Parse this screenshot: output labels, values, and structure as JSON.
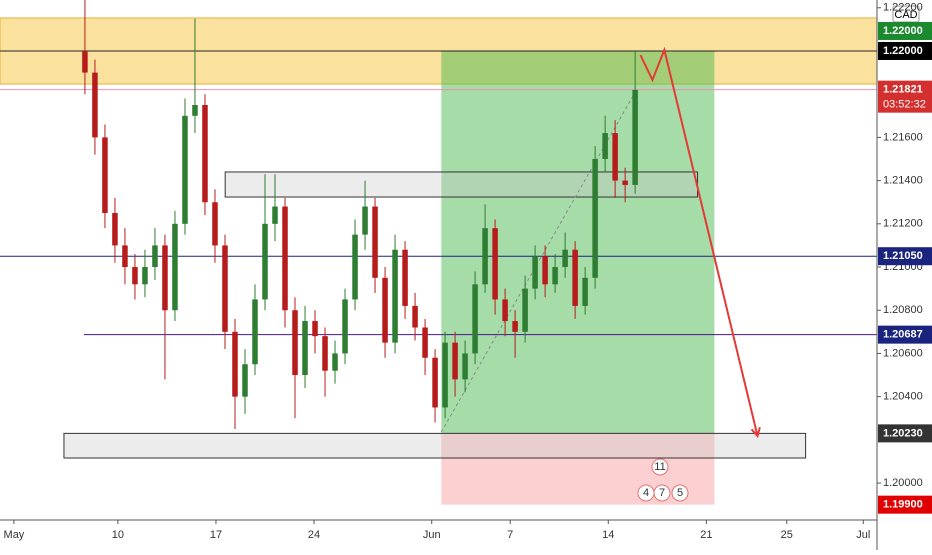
{
  "chart_data": {
    "type": "candlestick",
    "currency": "CAD",
    "x": [
      3.62,
      4.13,
      4.64,
      5.15,
      5.66,
      6.17,
      6.68,
      7.19,
      7.7,
      8.21,
      8.72,
      9.23,
      9.74,
      10.25,
      10.76,
      11.27,
      11.78,
      12.29,
      12.8,
      13.31,
      13.82,
      14.33,
      14.84,
      15.35,
      15.86,
      16.37,
      16.88,
      17.39,
      17.9,
      18.41,
      18.92,
      19.43,
      19.94,
      20.45,
      20.96,
      21.47,
      21.98,
      22.49,
      23.0,
      23.51,
      24.02,
      24.53,
      25.04,
      25.55,
      26.06,
      26.57,
      27.08,
      27.59,
      28.1,
      28.61,
      29.12,
      29.63,
      30.14,
      30.65,
      31.16,
      31.67
    ],
    "open": [
      1.22,
      1.219,
      1.216,
      1.2125,
      1.211,
      1.21,
      1.2092,
      1.21,
      1.211,
      1.208,
      1.212,
      1.217,
      1.2175,
      1.213,
      1.211,
      1.207,
      1.204,
      1.2055,
      1.2085,
      1.212,
      1.2128,
      1.208,
      1.205,
      1.2075,
      1.2068,
      1.2052,
      1.206,
      1.2085,
      1.2115,
      1.2128,
      1.2095,
      1.2065,
      1.2108,
      1.2082,
      1.2072,
      1.2058,
      1.2035,
      1.2065,
      1.2048,
      1.206,
      1.2092,
      1.2118,
      1.2085,
      1.2075,
      1.207,
      1.209,
      1.2105,
      1.2092,
      1.21,
      1.2108,
      1.2082,
      1.2095,
      1.215,
      1.2162,
      1.214,
      1.2138
    ],
    "high": [
      1.2236,
      1.2196,
      1.2166,
      1.2132,
      1.2118,
      1.2106,
      1.2108,
      1.2118,
      1.2115,
      1.2126,
      1.2178,
      1.2215,
      1.218,
      1.2136,
      1.2115,
      1.2076,
      1.2062,
      1.2092,
      1.2143,
      1.2143,
      1.2132,
      1.2086,
      1.2082,
      1.208,
      1.2072,
      1.2066,
      1.209,
      1.2122,
      1.214,
      1.2132,
      1.21,
      1.2115,
      1.2112,
      1.2088,
      1.2076,
      1.2062,
      1.207,
      1.207,
      1.2066,
      1.2098,
      1.2129,
      1.2122,
      1.209,
      1.208,
      1.2096,
      1.211,
      1.211,
      1.2106,
      1.2116,
      1.2112,
      1.21,
      1.2156,
      1.217,
      1.2168,
      1.2146,
      1.22
    ],
    "low": [
      1.218,
      1.2152,
      1.2118,
      1.2102,
      1.2092,
      1.2085,
      1.2086,
      1.2094,
      1.2048,
      1.2075,
      1.2115,
      1.2162,
      1.2124,
      1.2102,
      1.2062,
      1.2025,
      1.2032,
      1.205,
      1.208,
      1.2112,
      1.2072,
      1.203,
      1.2044,
      1.206,
      1.204,
      1.2046,
      1.2055,
      1.208,
      1.2108,
      1.2088,
      1.2058,
      1.206,
      1.2076,
      1.2066,
      1.205,
      1.2028,
      1.203,
      1.204,
      1.2042,
      1.2055,
      1.2088,
      1.2078,
      1.2068,
      1.2058,
      1.2065,
      1.2085,
      1.2086,
      1.2088,
      1.2095,
      1.2076,
      1.2078,
      1.209,
      1.2144,
      1.2132,
      1.213,
      1.2134
    ],
    "close": [
      1.219,
      1.216,
      1.2125,
      1.211,
      1.21,
      1.2092,
      1.21,
      1.211,
      1.208,
      1.212,
      1.217,
      1.2175,
      1.213,
      1.211,
      1.207,
      1.204,
      1.2055,
      1.2085,
      1.212,
      1.2128,
      1.208,
      1.205,
      1.2075,
      1.2068,
      1.2052,
      1.206,
      1.2085,
      1.2115,
      1.2128,
      1.2095,
      1.2065,
      1.2108,
      1.2082,
      1.2072,
      1.2058,
      1.2035,
      1.2065,
      1.2048,
      1.206,
      1.2092,
      1.2118,
      1.2085,
      1.2075,
      1.207,
      1.209,
      1.2105,
      1.2092,
      1.21,
      1.2108,
      1.2082,
      1.2095,
      1.215,
      1.2162,
      1.214,
      1.2138,
      1.2182
    ],
    "up_color": "#2e7d32",
    "down_color": "#b71c1c",
    "xlim": [
      -0.71,
      44.0
    ],
    "ylim": [
      1.19829,
      1.22236
    ],
    "xticks": [
      {
        "value": 0,
        "label": "May"
      },
      {
        "value": 5.3,
        "label": "10"
      },
      {
        "value": 10.3,
        "label": "17"
      },
      {
        "value": 15.3,
        "label": "24"
      },
      {
        "value": 21.3,
        "label": "Jun"
      },
      {
        "value": 25.3,
        "label": "7"
      },
      {
        "value": 30.3,
        "label": "14"
      },
      {
        "value": 35.3,
        "label": "21"
      },
      {
        "value": 39.4,
        "label": "25"
      },
      {
        "value": 43.3,
        "label": "Jul"
      }
    ],
    "yticks": [
      {
        "value": 1.222,
        "label": "1.22200"
      },
      {
        "value": 1.216,
        "label": "1.21600"
      },
      {
        "value": 1.214,
        "label": "1.21400"
      },
      {
        "value": 1.212,
        "label": "1.21200"
      },
      {
        "value": 1.21,
        "label": "1.21000"
      },
      {
        "value": 1.208,
        "label": "1.20800"
      },
      {
        "value": 1.206,
        "label": "1.20600"
      },
      {
        "value": 1.204,
        "label": "1.20400"
      },
      {
        "value": 1.2,
        "label": "1.20000"
      }
    ],
    "grid": false,
    "rectangles": [
      {
        "x": [
          -0.71,
          44.0
        ],
        "y": [
          1.21847,
          1.22153
        ],
        "fill": "rgba(245,190,40,0.45)",
        "stroke": "#e6b33a"
      },
      {
        "x": [
          21.79,
          35.71
        ],
        "y": [
          1.2023,
          1.22
        ],
        "fill": "rgba(76,185,80,0.5)",
        "stroke": "none"
      },
      {
        "x": [
          21.79,
          35.71
        ],
        "y": [
          1.199,
          1.2023
        ],
        "fill": "rgba(245,120,120,0.35)",
        "stroke": "none"
      },
      {
        "x": [
          10.77,
          34.85
        ],
        "y": [
          1.21324,
          1.2144
        ],
        "fill": "rgba(200,200,200,0.35)",
        "stroke": "#333"
      },
      {
        "x": [
          2.55,
          40.36
        ],
        "y": [
          1.20116,
          1.2023
        ],
        "fill": "rgba(200,200,200,0.35)",
        "stroke": "#333"
      }
    ],
    "horizontal_lines": [
      {
        "value": 1.22,
        "color": "#222"
      },
      {
        "value": 1.21821,
        "color": "#f48fb1"
      },
      {
        "value": 1.2105,
        "color": "#1a237e"
      },
      {
        "value": 1.20687,
        "color": "#4a148c",
        "from": 3.57
      }
    ],
    "trend_line": {
      "x": [
        21.79,
        31.73
      ],
      "y": [
        1.20236,
        1.21819
      ],
      "color": "#888"
    },
    "arrow": {
      "x": [
        31.94,
        32.55,
        33.16,
        37.91
      ],
      "y": [
        1.21981,
        1.21866,
        1.22005,
        1.20218
      ],
      "color": "#e53935"
    },
    "price_labels": [
      {
        "value": 1.22,
        "label": "1.22000",
        "color": "#000000"
      },
      {
        "value": 1.22,
        "label": "1.22000",
        "color": "#1b8a2e"
      },
      {
        "value": 1.21821,
        "label": "1.21821",
        "color": "#d32f2f",
        "sub": "03:52:32"
      },
      {
        "value": 1.2105,
        "label": "1.21050",
        "color": "#1a237e"
      },
      {
        "value": 1.20687,
        "label": "1.20687",
        "color": "#1a237e"
      },
      {
        "value": 1.2023,
        "label": "1.20230",
        "color": "#333333"
      },
      {
        "value": 1.199,
        "label": "1.19900",
        "color": "#e00000"
      }
    ],
    "events": [
      "11",
      "4",
      "7",
      "5"
    ]
  }
}
